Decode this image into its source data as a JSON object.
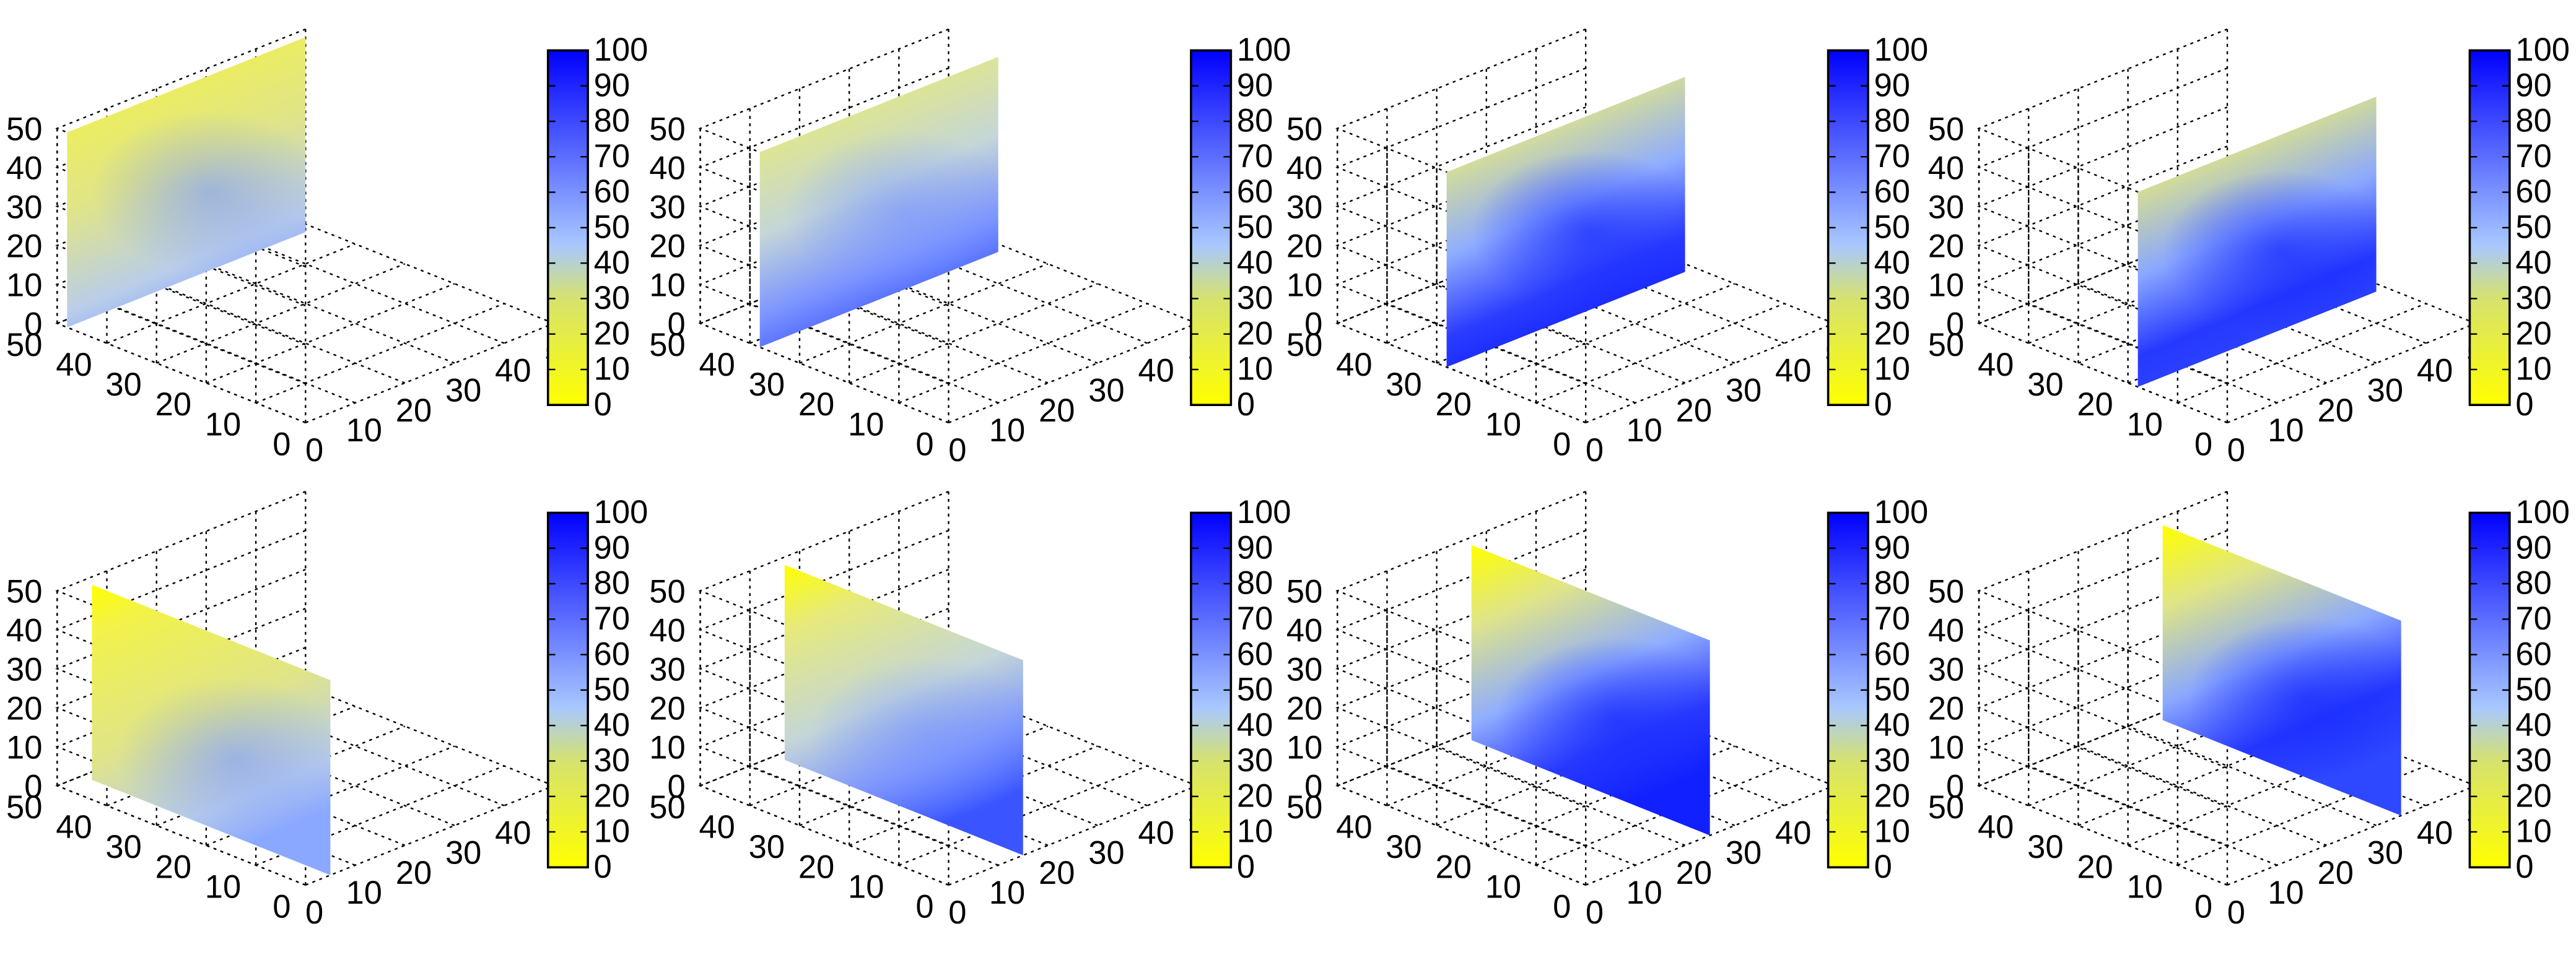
{
  "chart_data": {
    "type": "surface3d",
    "layout": {
      "rows": 2,
      "cols": 4
    },
    "colormap": {
      "stops": [
        {
          "value": 0,
          "color": "#ffff00"
        },
        {
          "value": 30,
          "color": "#d6e26e"
        },
        {
          "value": 45,
          "color": "#a8c8ff"
        },
        {
          "value": 100,
          "color": "#0000ff"
        }
      ]
    },
    "colorbar": {
      "range": [
        0,
        100
      ],
      "ticks": [
        0,
        10,
        20,
        30,
        40,
        50,
        60,
        70,
        80,
        90,
        100
      ]
    },
    "axes": {
      "x": {
        "range": [
          0,
          50
        ],
        "ticks": [
          0,
          10,
          20,
          30,
          40,
          50
        ]
      },
      "y": {
        "range": [
          0,
          50
        ],
        "ticks": [
          0,
          10,
          20,
          30,
          40,
          50
        ]
      },
      "z": {
        "range": [
          0,
          50
        ],
        "ticks": [
          0,
          10,
          20,
          30,
          40,
          50
        ]
      },
      "grid": true
    },
    "panels": [
      {
        "row": 0,
        "col": 0,
        "plane": {
          "start": [
            0,
            48
          ],
          "end": [
            48,
            48
          ],
          "z": [
            0,
            50
          ]
        }
      },
      {
        "row": 0,
        "col": 1,
        "plane": {
          "start": [
            0,
            38
          ],
          "end": [
            48,
            38
          ],
          "z": [
            0,
            50
          ]
        }
      },
      {
        "row": 0,
        "col": 2,
        "plane": {
          "start": [
            0,
            28
          ],
          "end": [
            48,
            28
          ],
          "z": [
            0,
            50
          ]
        }
      },
      {
        "row": 0,
        "col": 3,
        "plane": {
          "start": [
            0,
            18
          ],
          "end": [
            48,
            18
          ],
          "z": [
            0,
            50
          ]
        }
      },
      {
        "row": 1,
        "col": 0,
        "plane": {
          "start": [
            5,
            48
          ],
          "end": [
            5,
            0
          ],
          "z": [
            0,
            50
          ]
        }
      },
      {
        "row": 1,
        "col": 1,
        "plane": {
          "start": [
            15,
            48
          ],
          "end": [
            15,
            0
          ],
          "z": [
            0,
            50
          ]
        }
      },
      {
        "row": 1,
        "col": 2,
        "plane": {
          "start": [
            25,
            48
          ],
          "end": [
            25,
            0
          ],
          "z": [
            0,
            50
          ]
        }
      },
      {
        "row": 1,
        "col": 3,
        "plane": {
          "start": [
            35,
            48
          ],
          "end": [
            35,
            0
          ],
          "z": [
            0,
            50
          ]
        }
      }
    ]
  }
}
